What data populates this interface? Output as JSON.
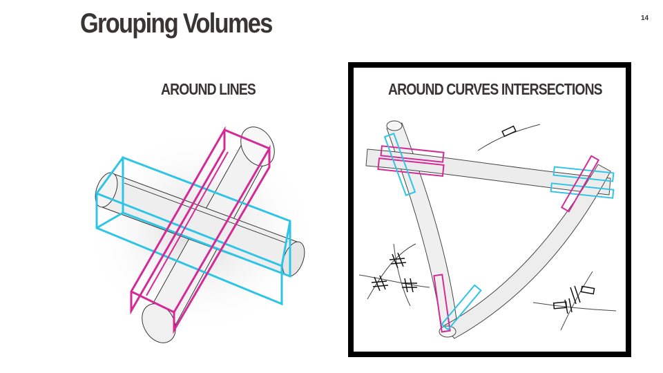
{
  "slide": {
    "title": "Grouping Volumes",
    "page_number": "14"
  },
  "left_panel": {
    "label": "AROUND LINES"
  },
  "right_panel": {
    "label": "AROUND CURVES INTERSECTIONS"
  },
  "colors": {
    "text": "#3a3535",
    "cyan": "#2ec4e6",
    "magenta": "#d42a96",
    "frame": "#000000",
    "tube_fill": "#efefef",
    "tube_stroke": "#555555"
  }
}
